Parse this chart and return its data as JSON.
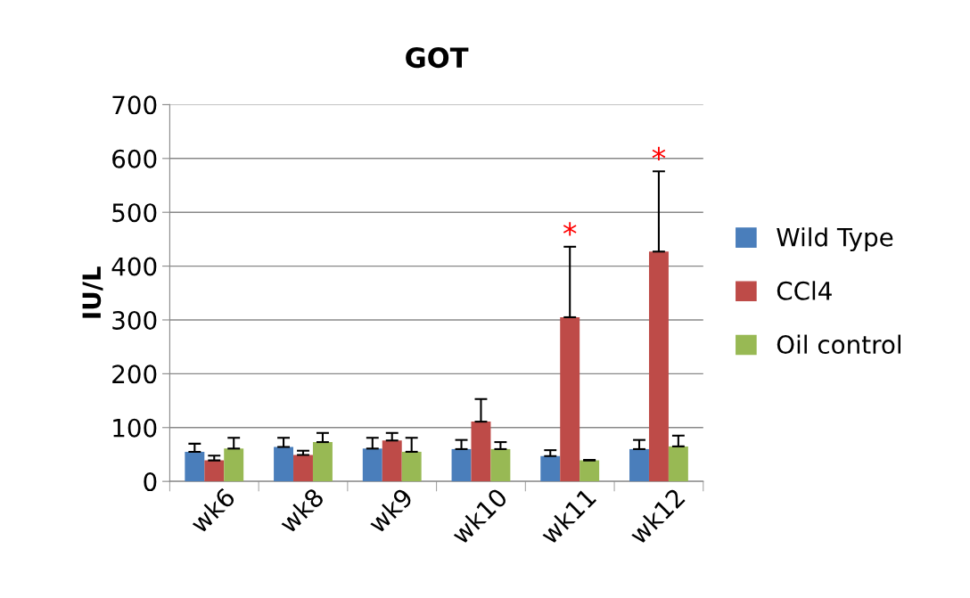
{
  "chart_data": {
    "type": "bar",
    "title": "GOT",
    "ylabel": "IU/L",
    "categories": [
      "wk6",
      "wk8",
      "wk9",
      "wk10",
      "wk11",
      "wk12"
    ],
    "series": [
      {
        "name": "Wild Type",
        "color": "#4a7ebb",
        "values": [
          55,
          64,
          61,
          60,
          47,
          60
        ],
        "errors": [
          15,
          17,
          20,
          17,
          11,
          17
        ]
      },
      {
        "name": "CCl4",
        "color": "#be4b48",
        "values": [
          39,
          49,
          76,
          111,
          305,
          427
        ],
        "errors": [
          9,
          8,
          14,
          42,
          131,
          149
        ],
        "value_labels": [
          null,
          null,
          null,
          null,
          "*",
          "*"
        ]
      },
      {
        "name": "Oil control",
        "color": "#98b954",
        "values": [
          61,
          73,
          55,
          60,
          39,
          65
        ],
        "errors": [
          20,
          17,
          26,
          13,
          1,
          20
        ]
      }
    ],
    "ylim": [
      0,
      700
    ],
    "yticks": [
      0,
      100,
      200,
      300,
      400,
      500,
      600,
      700
    ],
    "grid": "y",
    "legend": "right"
  }
}
